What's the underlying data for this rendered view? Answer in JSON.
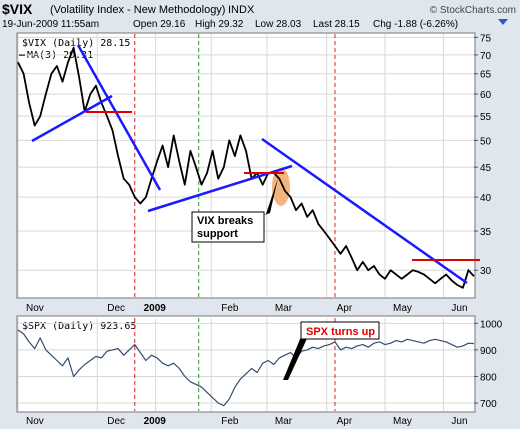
{
  "header": {
    "symbol": "$VIX",
    "description": "(Volatility Index - New Methodology)",
    "exchange": "INDX",
    "watermark": "© StockCharts.com",
    "timestamp": "19-Jun-2009 11:55am",
    "open": "Open 29.16",
    "high": "High 29.32",
    "low": "Low 28.03",
    "last": "Last 28.15",
    "chg": "Chg -1.88 (-6.26%)",
    "down_arrow_color": "#3355cc"
  },
  "chart_data": [
    {
      "type": "line",
      "legend": [
        "$VIX (Daily) 28.15",
        "MA(3) 29.31"
      ],
      "x_tick_labels": [
        "Nov",
        "Dec",
        "2009",
        "Feb",
        "Mar",
        "Apr",
        "May",
        "Jun"
      ],
      "y_ticks": [
        30,
        35,
        40,
        45,
        50,
        55,
        60,
        65,
        70,
        75
      ],
      "ylim": [
        27,
        76
      ],
      "scale": "log",
      "series": [
        {
          "name": "MA(3)",
          "color": "#000000",
          "x": [
            0,
            2,
            4,
            6,
            8,
            10,
            12,
            14,
            16,
            18,
            20,
            22,
            24,
            26,
            28,
            30,
            32,
            34,
            36,
            38,
            40,
            42,
            44,
            46,
            48,
            50,
            52,
            54,
            56,
            58,
            60,
            62,
            64,
            66,
            68,
            70,
            72,
            74,
            76,
            78,
            80,
            82,
            84,
            86,
            88,
            90,
            92,
            94,
            96,
            98,
            100,
            102,
            104,
            106,
            108,
            110,
            112,
            114,
            116,
            118,
            120,
            122,
            124,
            126,
            128,
            130,
            132,
            134,
            136,
            138,
            140,
            142,
            144,
            146,
            148,
            150,
            152,
            154,
            156,
            158,
            160,
            162,
            164
          ],
          "values": [
            68,
            65,
            58,
            53,
            55,
            60,
            65,
            67,
            63,
            68,
            72,
            64,
            56,
            60,
            62,
            58,
            55,
            52,
            47,
            43,
            42,
            40,
            39,
            40,
            43,
            46,
            49,
            45,
            51,
            46,
            42,
            48,
            45,
            42,
            44,
            48,
            43,
            45,
            50,
            47,
            51,
            48,
            43,
            44,
            42,
            44,
            44,
            43,
            41,
            40,
            38,
            39,
            37,
            38,
            36,
            35,
            34,
            33,
            32,
            33,
            31.5,
            30,
            31,
            30,
            30.5,
            29.5,
            29,
            30,
            29.5,
            29,
            29.5,
            30,
            29.8,
            29.5,
            29,
            28.5,
            29,
            29.5,
            28.8,
            28.3,
            28,
            30,
            29.3
          ]
        }
      ]
    },
    {
      "type": "line",
      "legend": [
        "$SPX (Daily) 923.65"
      ],
      "y_ticks": [
        700,
        800,
        900,
        1000
      ],
      "ylim": [
        670,
        1020
      ],
      "series": [
        {
          "name": "$SPX",
          "color": "#000000",
          "x": [
            0,
            2,
            4,
            6,
            8,
            10,
            12,
            14,
            16,
            18,
            20,
            22,
            24,
            26,
            28,
            30,
            32,
            34,
            36,
            38,
            40,
            42,
            44,
            46,
            48,
            50,
            52,
            54,
            56,
            58,
            60,
            62,
            64,
            66,
            68,
            70,
            72,
            74,
            76,
            78,
            80,
            82,
            84,
            86,
            88,
            90,
            92,
            94,
            96,
            98,
            100,
            102,
            104,
            106,
            108,
            110,
            112,
            114,
            116,
            118,
            120,
            122,
            124,
            126,
            128,
            130,
            132,
            134,
            136,
            138,
            140,
            142,
            144,
            146,
            148,
            150,
            152,
            154,
            156,
            158,
            160,
            162,
            164
          ],
          "values": [
            975,
            960,
            930,
            905,
            945,
            900,
            880,
            860,
            840,
            870,
            800,
            825,
            845,
            860,
            875,
            870,
            895,
            900,
            905,
            880,
            900,
            920,
            890,
            860,
            880,
            870,
            850,
            840,
            850,
            830,
            800,
            780,
            770,
            760,
            740,
            720,
            700,
            690,
            715,
            760,
            790,
            810,
            830,
            815,
            850,
            860,
            845,
            870,
            880,
            890,
            870,
            895,
            900,
            910,
            905,
            915,
            920,
            930,
            900,
            910,
            905,
            915,
            920,
            910,
            925,
            930,
            920,
            925,
            935,
            930,
            940,
            935,
            930,
            925,
            935,
            940,
            935,
            930,
            920,
            910,
            915,
            925,
            923.65
          ]
        }
      ]
    }
  ],
  "annotations": {
    "vix_support": "VIX breaks support",
    "spx_turns_up": "SPX turns up"
  }
}
